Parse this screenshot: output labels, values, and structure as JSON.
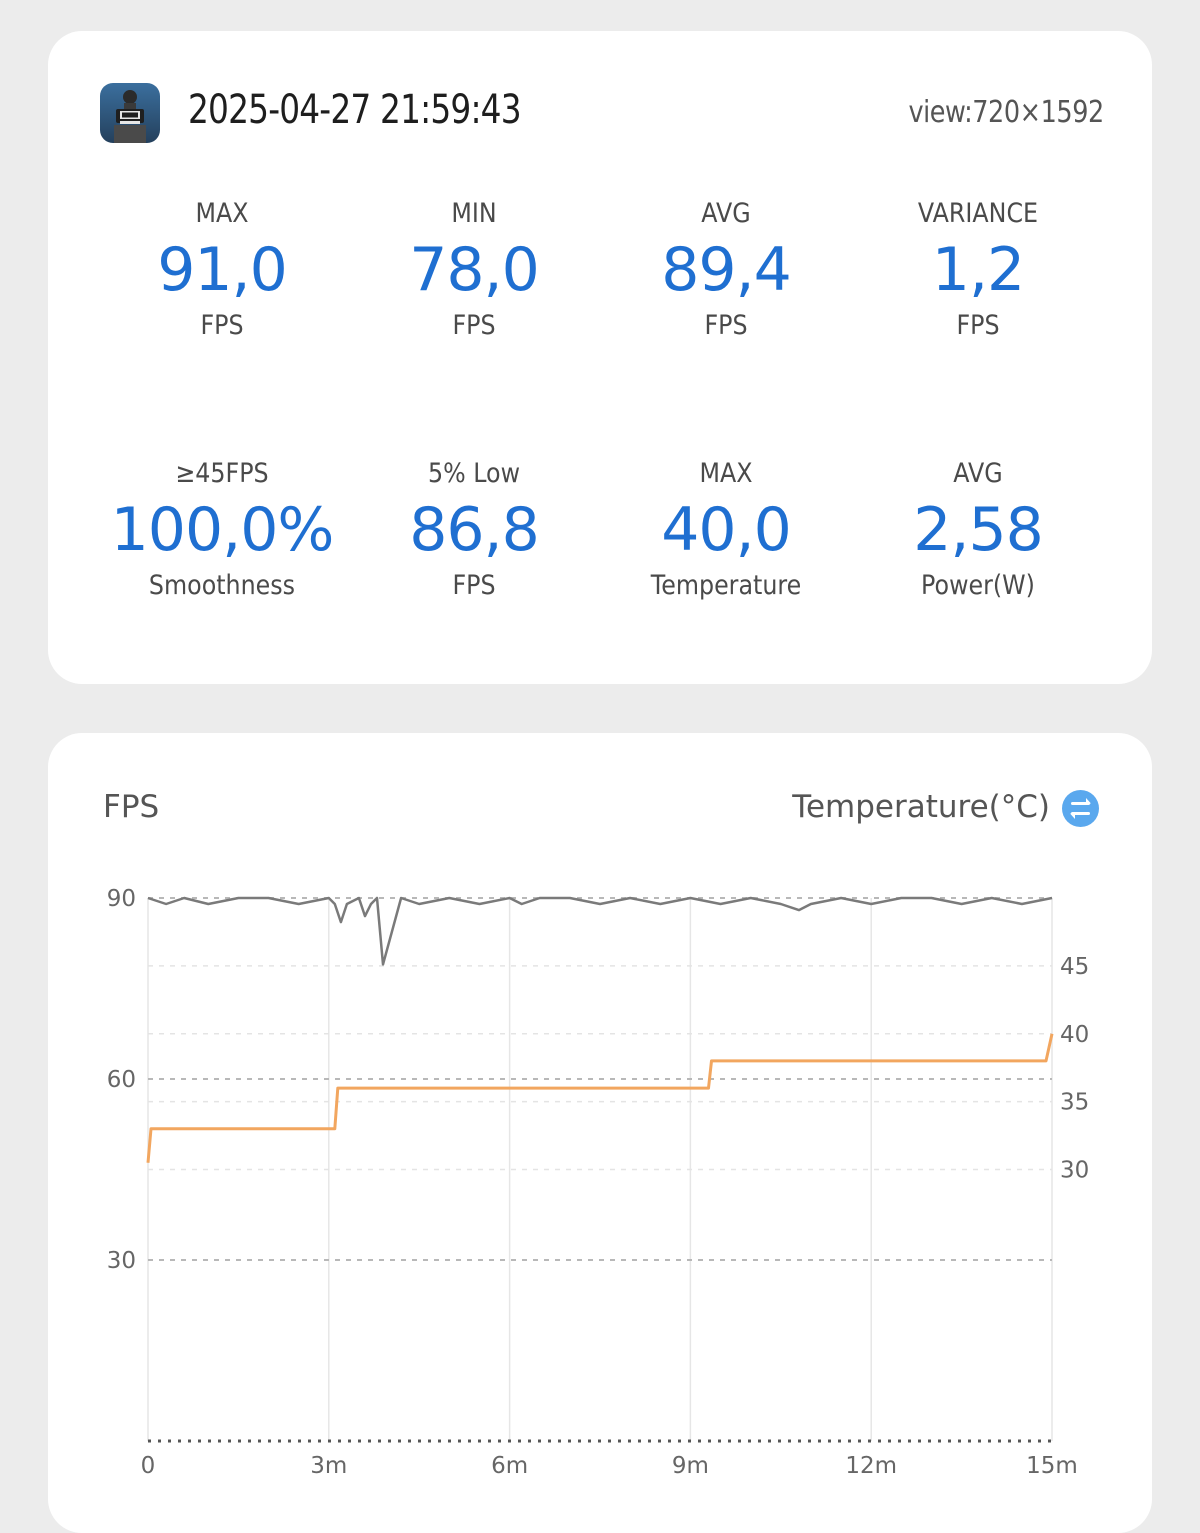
{
  "session": {
    "timestamp": "2025-04-27 21:59:43",
    "view": "view:720×1592",
    "app_icon": "game-app-icon"
  },
  "stats": [
    {
      "label": "MAX",
      "value": "91,0",
      "unit": "FPS"
    },
    {
      "label": "MIN",
      "value": "78,0",
      "unit": "FPS"
    },
    {
      "label": "AVG",
      "value": "89,4",
      "unit": "FPS"
    },
    {
      "label": "VARIANCE",
      "value": "1,2",
      "unit": "FPS"
    },
    {
      "label": "≥45FPS",
      "value": "100,0%",
      "unit": "Smoothness"
    },
    {
      "label": "5% Low",
      "value": "86,8",
      "unit": "FPS"
    },
    {
      "label": "MAX",
      "value": "40,0",
      "unit": "Temperature"
    },
    {
      "label": "AVG",
      "value": "2,58",
      "unit": "Power(W)"
    }
  ],
  "chart_legend": {
    "left": "FPS",
    "right": "Temperature(°C)",
    "toggle_icon": "swap-icon"
  },
  "colors": {
    "accent": "#1f6fd1",
    "fps_line": "#7a7a7a",
    "temp_line": "#f2a65f",
    "toggle": "#5aa8ee"
  },
  "chart_data": {
    "type": "line",
    "x_tick_labels": [
      "0",
      "3m",
      "6m",
      "9m",
      "12m",
      "15m"
    ],
    "xlim": [
      0,
      15
    ],
    "y_left_ticks": [
      "90",
      "60",
      "30"
    ],
    "y_left_lim": [
      0,
      90
    ],
    "y_right_ticks": [
      "45",
      "40",
      "35",
      "30"
    ],
    "y_right_lim": [
      10,
      50
    ],
    "grid": true,
    "series": [
      {
        "name": "FPS",
        "axis": "left",
        "x": [
          0,
          0.3,
          0.6,
          1,
          1.5,
          2,
          2.5,
          3,
          3.1,
          3.2,
          3.3,
          3.5,
          3.6,
          3.7,
          3.8,
          3.9,
          4.2,
          4.5,
          5,
          5.5,
          6,
          6.2,
          6.5,
          7,
          7.5,
          8,
          8.5,
          9,
          9.5,
          10,
          10.5,
          10.8,
          11,
          11.5,
          12,
          12.5,
          13,
          13.5,
          14,
          14.5,
          15
        ],
        "values": [
          90,
          89,
          90,
          89,
          90,
          90,
          89,
          90,
          89,
          86,
          89,
          90,
          87,
          89,
          90,
          79,
          90,
          89,
          90,
          89,
          90,
          89,
          90,
          90,
          89,
          90,
          89,
          90,
          89,
          90,
          89,
          88,
          89,
          90,
          89,
          90,
          90,
          89,
          90,
          89,
          90
        ]
      },
      {
        "name": "Temperature",
        "axis": "right",
        "x": [
          0,
          0.05,
          3.1,
          3.15,
          9.3,
          9.35,
          14.9,
          15
        ],
        "values": [
          30.5,
          33,
          33,
          36,
          36,
          38,
          38,
          40
        ]
      }
    ]
  }
}
